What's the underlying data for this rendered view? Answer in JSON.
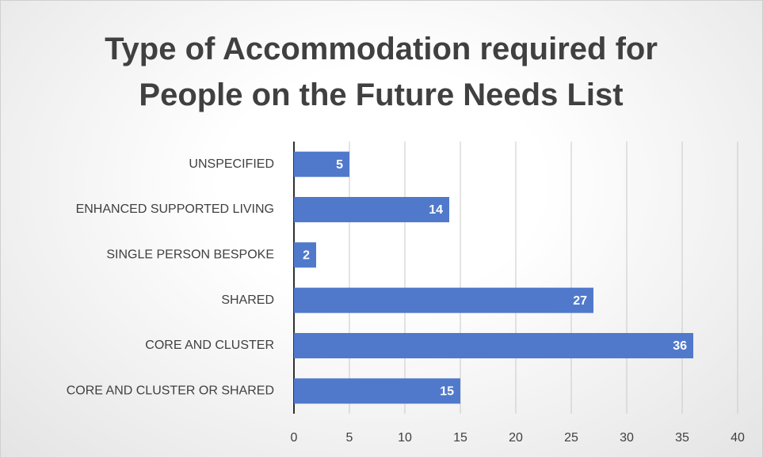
{
  "chart_data": {
    "type": "bar",
    "orientation": "horizontal",
    "title": "Type of Accommodation required for People on the Future Needs List",
    "categories": [
      "UNSPECIFIED",
      "ENHANCED SUPPORTED LIVING",
      "SINGLE PERSON BESPOKE",
      "SHARED",
      "CORE AND CLUSTER",
      "CORE AND CLUSTER OR SHARED"
    ],
    "values": [
      5,
      14,
      2,
      27,
      36,
      15
    ],
    "color": "#5079cb",
    "xlim": [
      0,
      40
    ],
    "xticks": [
      0,
      5,
      10,
      15,
      20,
      25,
      30,
      35,
      40
    ],
    "grid": true
  }
}
